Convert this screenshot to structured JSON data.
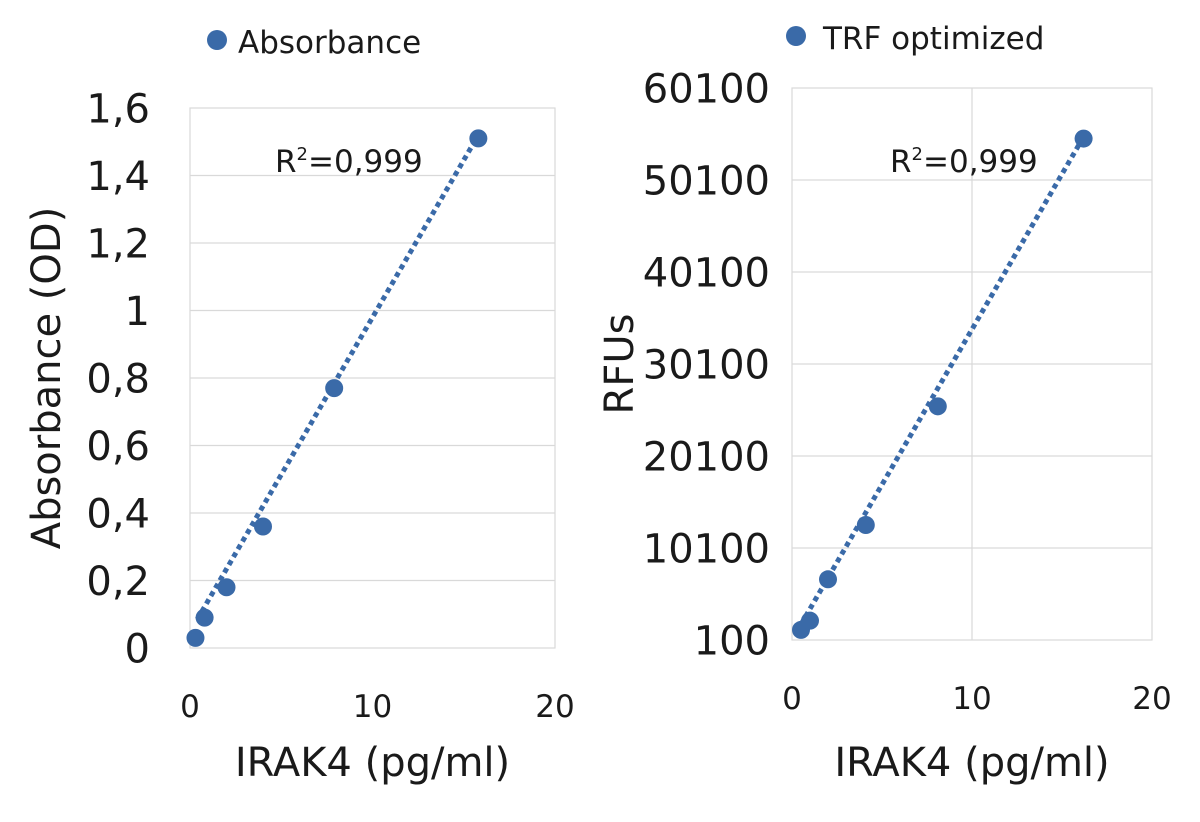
{
  "marker_color": "#3a6aa8",
  "grid_color": "#d9d9d9",
  "chart_data": [
    {
      "type": "scatter",
      "legend": "Absorbance",
      "legend_position": "top",
      "xlabel": "IRAK4 (pg/ml)",
      "ylabel": "Absorbance (OD)",
      "xlim": [
        0,
        20
      ],
      "ylim": [
        0,
        1.6
      ],
      "x_ticks": [
        "0",
        "10",
        "20"
      ],
      "y_ticks": [
        "0",
        "0,2",
        "0,4",
        "0,6",
        "0,8",
        "1",
        "1,2",
        "1,4",
        "1,6"
      ],
      "grid": "horizontal",
      "points": [
        {
          "x": 0.3,
          "y": 0.03
        },
        {
          "x": 0.8,
          "y": 0.09
        },
        {
          "x": 2.0,
          "y": 0.18
        },
        {
          "x": 4.0,
          "y": 0.36
        },
        {
          "x": 7.9,
          "y": 0.77
        },
        {
          "x": 15.8,
          "y": 1.51
        }
      ],
      "trendline": {
        "style": "dotted",
        "from": [
          0.4,
          0.085
        ],
        "to": [
          15.8,
          1.52
        ]
      },
      "annotation": {
        "base": "R",
        "sup": "2",
        "rest": "=0,999"
      }
    },
    {
      "type": "scatter",
      "legend": "TRF optimized",
      "legend_position": "top",
      "xlabel": "IRAK4 (pg/ml)",
      "ylabel": "RFUs",
      "xlim": [
        0,
        20
      ],
      "ylim": [
        100,
        60100
      ],
      "x_ticks": [
        "0",
        "10",
        "20"
      ],
      "y_ticks": [
        "100",
        "10100",
        "20100",
        "30100",
        "40100",
        "50100",
        "60100"
      ],
      "grid": "both",
      "points": [
        {
          "x": 0.5,
          "y": 1200
        },
        {
          "x": 1.0,
          "y": 2200
        },
        {
          "x": 2.0,
          "y": 6700
        },
        {
          "x": 4.1,
          "y": 12600
        },
        {
          "x": 8.1,
          "y": 25500
        },
        {
          "x": 16.2,
          "y": 54600
        }
      ],
      "trendline": {
        "style": "dotted",
        "from": [
          0.5,
          1800
        ],
        "to": [
          16.2,
          54800
        ]
      },
      "annotation": {
        "base": "R",
        "sup": "2",
        "rest": "=0,999"
      }
    }
  ]
}
